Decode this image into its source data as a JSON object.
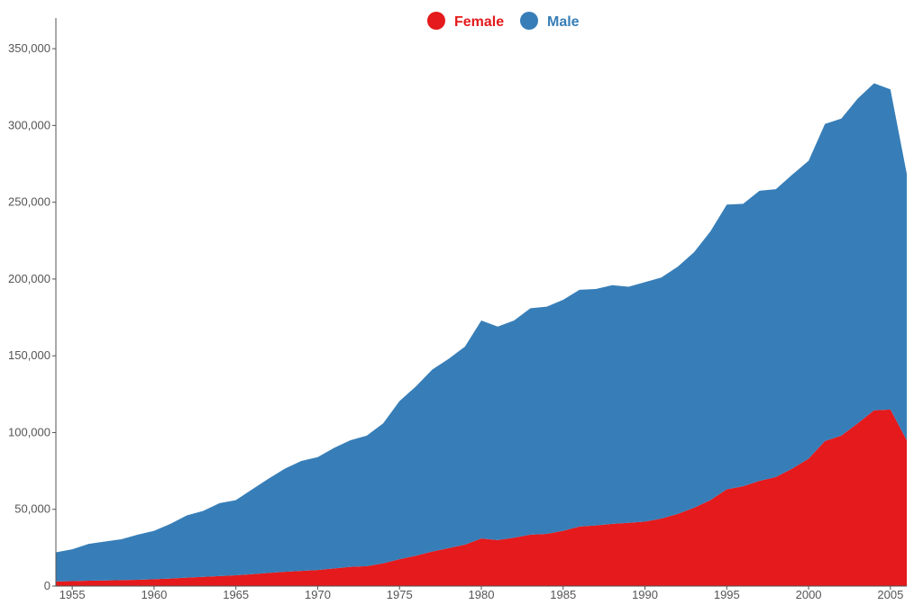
{
  "chart_data": {
    "type": "area",
    "stacked": true,
    "title": "",
    "xlabel": "",
    "ylabel": "",
    "x": [
      1954,
      1955,
      1956,
      1957,
      1958,
      1959,
      1960,
      1961,
      1962,
      1963,
      1964,
      1965,
      1966,
      1967,
      1968,
      1969,
      1970,
      1971,
      1972,
      1973,
      1974,
      1975,
      1976,
      1977,
      1978,
      1979,
      1980,
      1981,
      1982,
      1983,
      1984,
      1985,
      1986,
      1987,
      1988,
      1989,
      1990,
      1991,
      1992,
      1993,
      1994,
      1995,
      1996,
      1997,
      1998,
      1999,
      2000,
      2001,
      2002,
      2003,
      2004,
      2005,
      2006
    ],
    "series": [
      {
        "name": "Female",
        "color": "#e41a1c",
        "values": [
          3000,
          3200,
          3500,
          3700,
          3900,
          4100,
          4500,
          4900,
          5500,
          6000,
          6500,
          7000,
          7800,
          8600,
          9300,
          9900,
          10500,
          11500,
          12500,
          13000,
          14800,
          17500,
          19800,
          22500,
          24700,
          27000,
          31000,
          30000,
          31500,
          33500,
          34000,
          36000,
          38800,
          39500,
          40500,
          41200,
          42000,
          44000,
          47000,
          51000,
          56000,
          63000,
          65000,
          68500,
          71000,
          76500,
          83000,
          94500,
          98000,
          106000,
          114500,
          115000,
          95000
        ]
      },
      {
        "name": "Male",
        "color": "#377eb8",
        "values": [
          19000,
          20800,
          24000,
          25300,
          26600,
          29400,
          31500,
          35600,
          40500,
          43000,
          47500,
          49000,
          55200,
          61400,
          67200,
          71600,
          73500,
          78500,
          82500,
          85000,
          91200,
          103000,
          110200,
          118500,
          123300,
          129000,
          142000,
          139000,
          141500,
          147500,
          148000,
          150500,
          154200,
          154000,
          155500,
          153800,
          156000,
          157000,
          161000,
          166500,
          175000,
          185500,
          184000,
          189000,
          187500,
          191500,
          194000,
          206500,
          206500,
          211500,
          213000,
          208500,
          173500
        ]
      }
    ],
    "xlim": [
      1954,
      2006
    ],
    "ylim": [
      0,
      370000
    ],
    "xticks": [
      1955,
      1960,
      1965,
      1970,
      1975,
      1980,
      1985,
      1990,
      1995,
      2000,
      2005
    ],
    "yticks": [
      0,
      50000,
      100000,
      150000,
      200000,
      250000,
      300000,
      350000
    ],
    "ytick_labels": [
      "0",
      "50,000",
      "100,000",
      "150,000",
      "200,000",
      "250,000",
      "300,000",
      "350,000"
    ],
    "grid": false,
    "legend_position": "top-center"
  }
}
